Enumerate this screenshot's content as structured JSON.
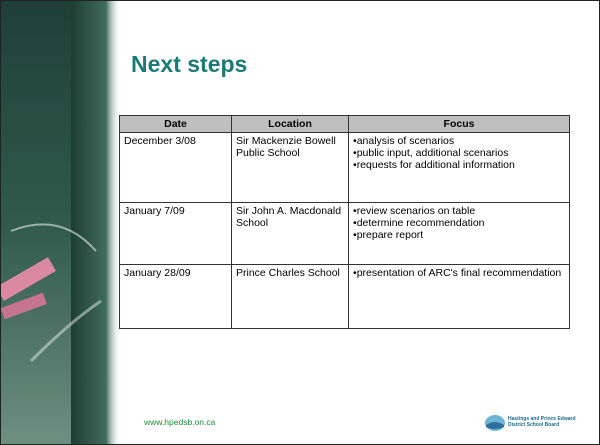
{
  "header": {
    "title": "Next steps"
  },
  "table": {
    "columns": [
      "Date",
      "Location",
      "Focus"
    ],
    "rows": [
      {
        "date": "December 3/08",
        "location": "Sir Mackenzie Bowell Public School",
        "focus": [
          "analysis of scenarios",
          "public input, additional scenarios",
          "requests for additional information"
        ]
      },
      {
        "date": "January 7/09",
        "location": "Sir John A. Macdonald School",
        "focus": [
          "review scenarios on table",
          "determine recommendation",
          "prepare report"
        ]
      },
      {
        "date": "January 28/09",
        "location": "Prince Charles School",
        "focus": [
          "presentation of ARC's final recommendation"
        ]
      }
    ]
  },
  "footer": {
    "url": "www.hpedsb.on.ca",
    "logo_text": [
      "Hastings and Prince Edward",
      "District School Board"
    ]
  }
}
